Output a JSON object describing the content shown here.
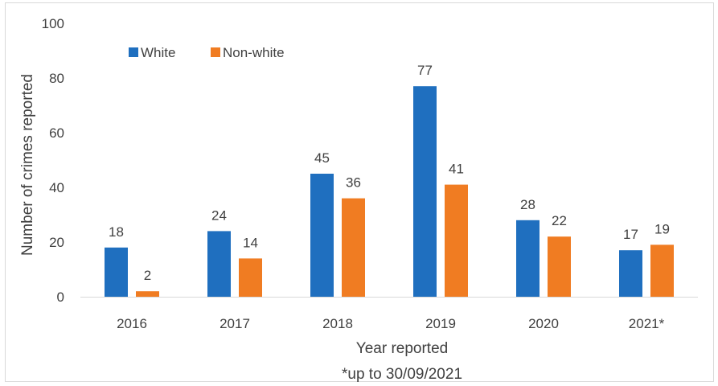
{
  "chart_data": {
    "type": "bar",
    "categories": [
      "2016",
      "2017",
      "2018",
      "2019",
      "2020",
      "2021*"
    ],
    "series": [
      {
        "name": "White",
        "values": [
          18,
          24,
          45,
          77,
          28,
          17
        ],
        "color": "#1f6fbf"
      },
      {
        "name": "Non-white",
        "values": [
          2,
          14,
          36,
          41,
          22,
          19
        ],
        "color": "#f07c22"
      }
    ],
    "title": "",
    "xlabel": "Year reported",
    "xlabel_note": "*up to 30/09/2021",
    "ylabel": "Number of crimes reported",
    "ylim": [
      0,
      100
    ],
    "yticks": [
      0,
      20,
      40,
      60,
      80,
      100
    ],
    "grid": false,
    "data_labels": true,
    "legend_position": "top-left"
  }
}
